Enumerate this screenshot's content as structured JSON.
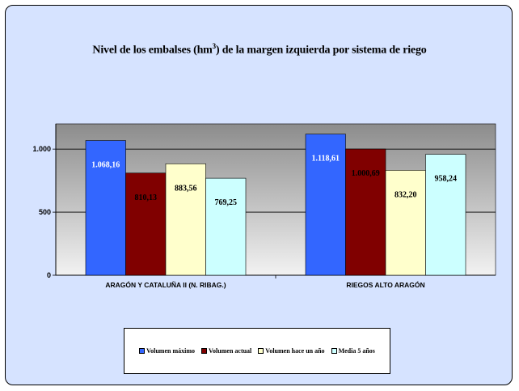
{
  "chart_data": {
    "type": "bar",
    "title": "Nivel de los embalses (hm",
    "title_sup": "3",
    "title_tail": ") de la margen izquierda por sistema de riego",
    "categories": [
      "ARAGÓN Y CATALUÑA II (N. RIBAG.)",
      "RIEGOS ALTO ARAGÓN"
    ],
    "series": [
      {
        "name": "Volumen máximo",
        "color": "#3366ff",
        "values": [
          1068.16,
          1118.61
        ],
        "labels": [
          "1.068,16",
          "1.118,61"
        ],
        "label_color": "#ffffff"
      },
      {
        "name": "Volumen actual",
        "color": "#800000",
        "values": [
          810.13,
          1000.69
        ],
        "labels": [
          "810,13",
          "1.000,69"
        ],
        "label_color": "#000000"
      },
      {
        "name": "Volumen hace un año",
        "color": "#ffffcc",
        "values": [
          883.56,
          832.2
        ],
        "labels": [
          "883,56",
          "832,20"
        ],
        "label_color": "#000000"
      },
      {
        "name": "Media 5 años",
        "color": "#ccffff",
        "values": [
          769.25,
          958.24
        ],
        "labels": [
          "769,25",
          "958,24"
        ],
        "label_color": "#000000"
      }
    ],
    "yticks": [
      0,
      500,
      1000
    ],
    "ytick_labels": [
      "0",
      "500",
      "1.000"
    ],
    "ylim": [
      0,
      1200
    ],
    "grid": true,
    "legend_position": "bottom"
  }
}
